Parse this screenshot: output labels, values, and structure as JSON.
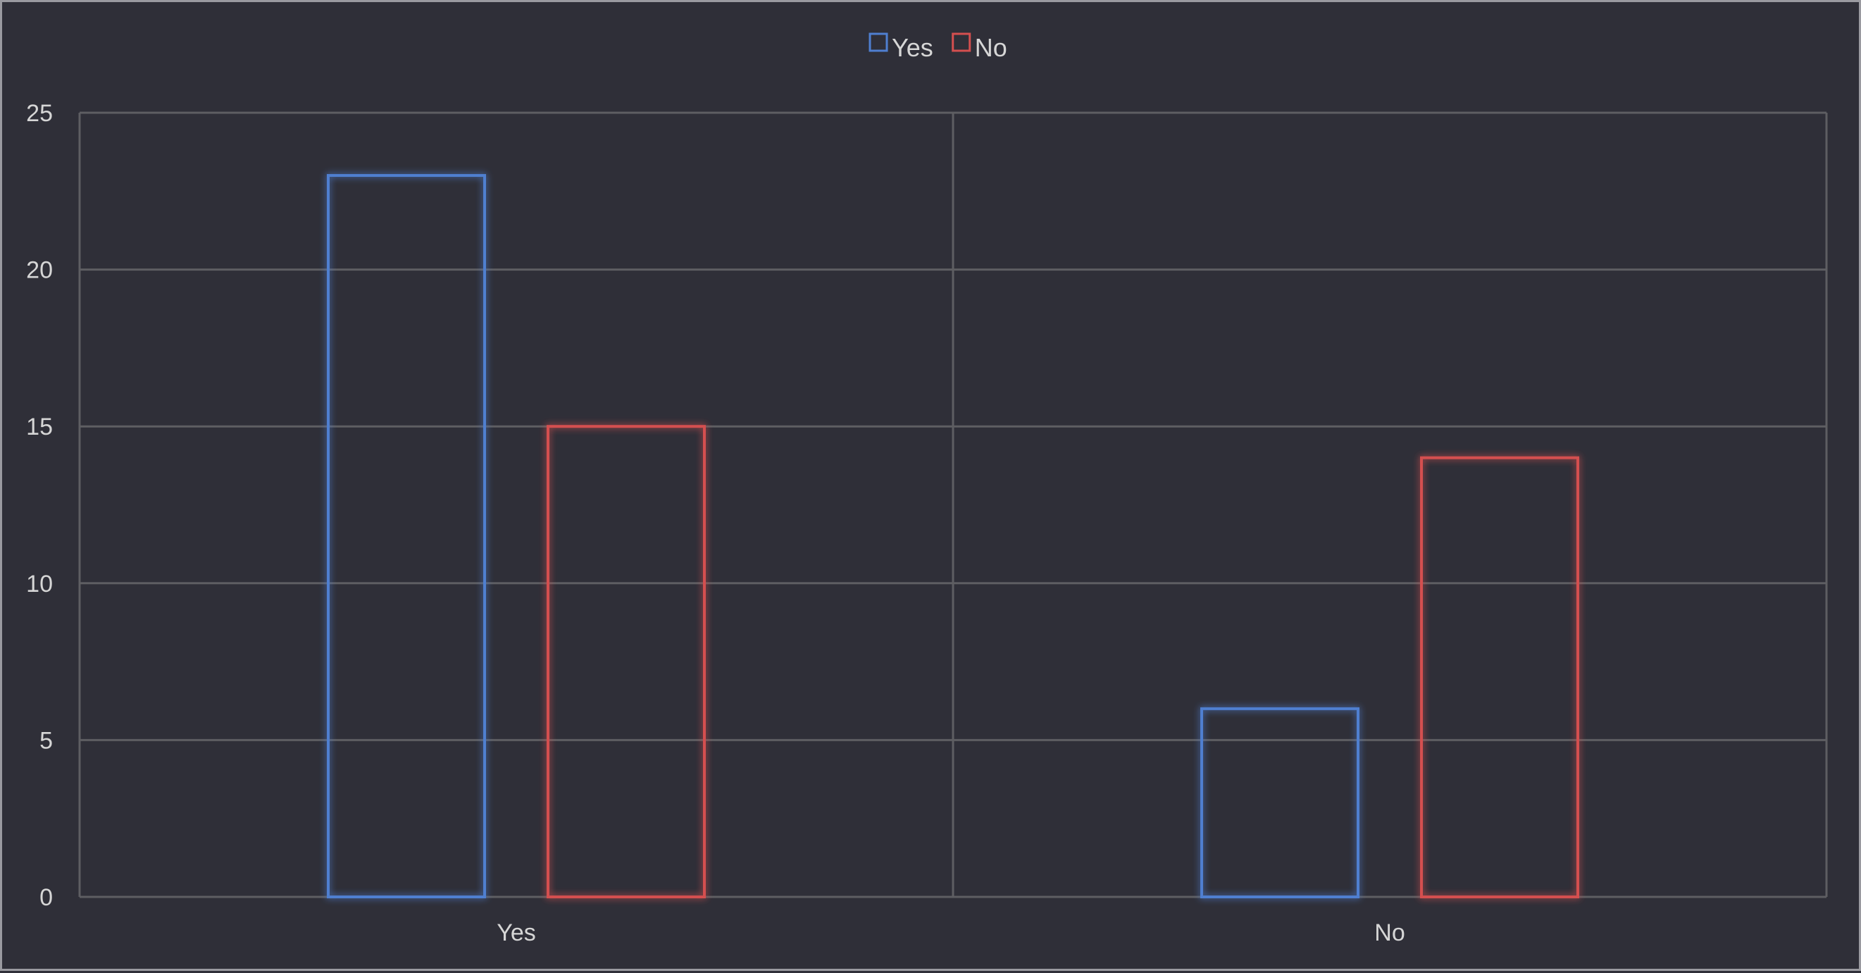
{
  "chart_data": {
    "type": "bar",
    "title": "",
    "xlabel": "",
    "ylabel": "",
    "categories": [
      "Yes",
      "No"
    ],
    "series": [
      {
        "name": "Yes",
        "color": "#4f7fd0",
        "values": [
          23,
          6
        ]
      },
      {
        "name": "No",
        "color": "#d44f4f",
        "values": [
          15,
          14
        ]
      }
    ],
    "ylim": [
      0,
      25
    ],
    "yticks": [
      0,
      5,
      10,
      15,
      20,
      25
    ],
    "grid": true,
    "legend_position": "top-center",
    "bar_style": "outline-glow"
  },
  "colors": {
    "background": "#2f2f38",
    "grid": "#5e5e62",
    "text": "#d6d6d6",
    "border": "#9a9aa0"
  }
}
